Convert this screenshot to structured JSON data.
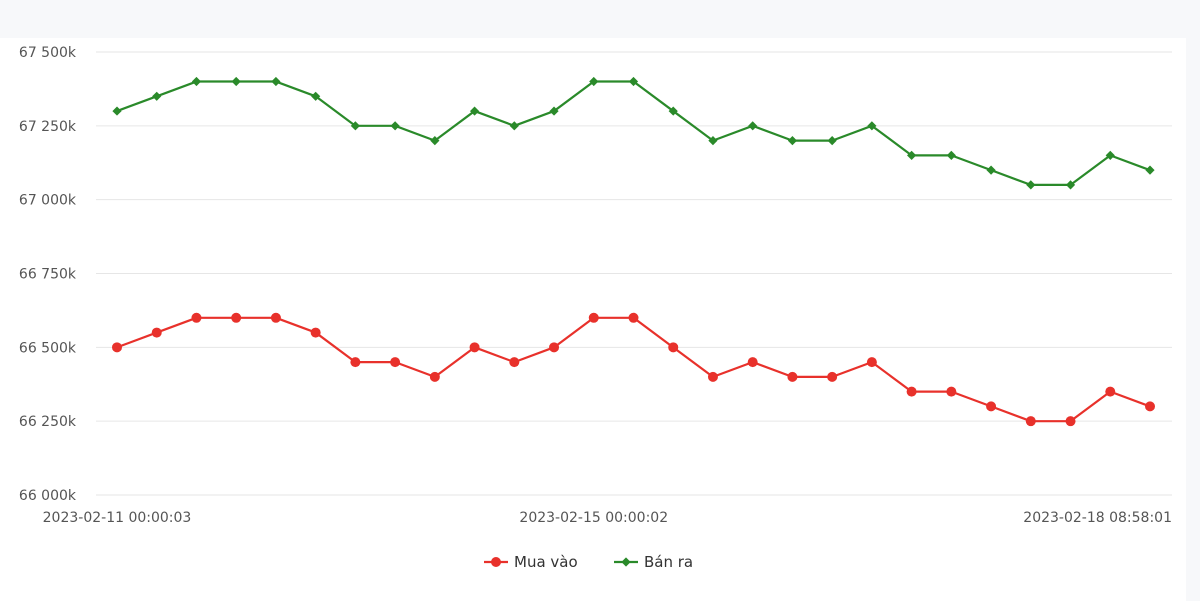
{
  "chart_data": {
    "type": "line",
    "title": "",
    "xlabel": "",
    "ylabel": "",
    "y_unit_suffix": "k",
    "ylim": [
      66000,
      67500
    ],
    "y_ticks": [
      66000,
      66250,
      66500,
      66750,
      67000,
      67250,
      67500
    ],
    "y_tick_labels": [
      "66 000k",
      "66 250k",
      "66 500k",
      "66 750k",
      "67 000k",
      "67 250k",
      "67 500k"
    ],
    "x_tick_labels": [
      "2023-02-11 00:00:03",
      "2023-02-15 00:00:02",
      "2023-02-18 08:58:01"
    ],
    "x_tick_indices": [
      0,
      12,
      26
    ],
    "grid": true,
    "legend_position": "bottom-center",
    "series": [
      {
        "name": "Mua vào",
        "color": "#e8312b",
        "marker": "circle",
        "values": [
          66500,
          66550,
          66600,
          66600,
          66600,
          66550,
          66450,
          66450,
          66400,
          66500,
          66450,
          66500,
          66600,
          66600,
          66500,
          66400,
          66450,
          66400,
          66400,
          66450,
          66350,
          66350,
          66300,
          66250,
          66250,
          66350,
          66300
        ]
      },
      {
        "name": "Bán ra",
        "color": "#2a8a2a",
        "marker": "diamond",
        "values": [
          67300,
          67350,
          67400,
          67400,
          67400,
          67350,
          67250,
          67250,
          67200,
          67300,
          67250,
          67300,
          67400,
          67400,
          67300,
          67200,
          67250,
          67200,
          67200,
          67250,
          67150,
          67150,
          67100,
          67050,
          67050,
          67150,
          67100
        ]
      }
    ]
  }
}
